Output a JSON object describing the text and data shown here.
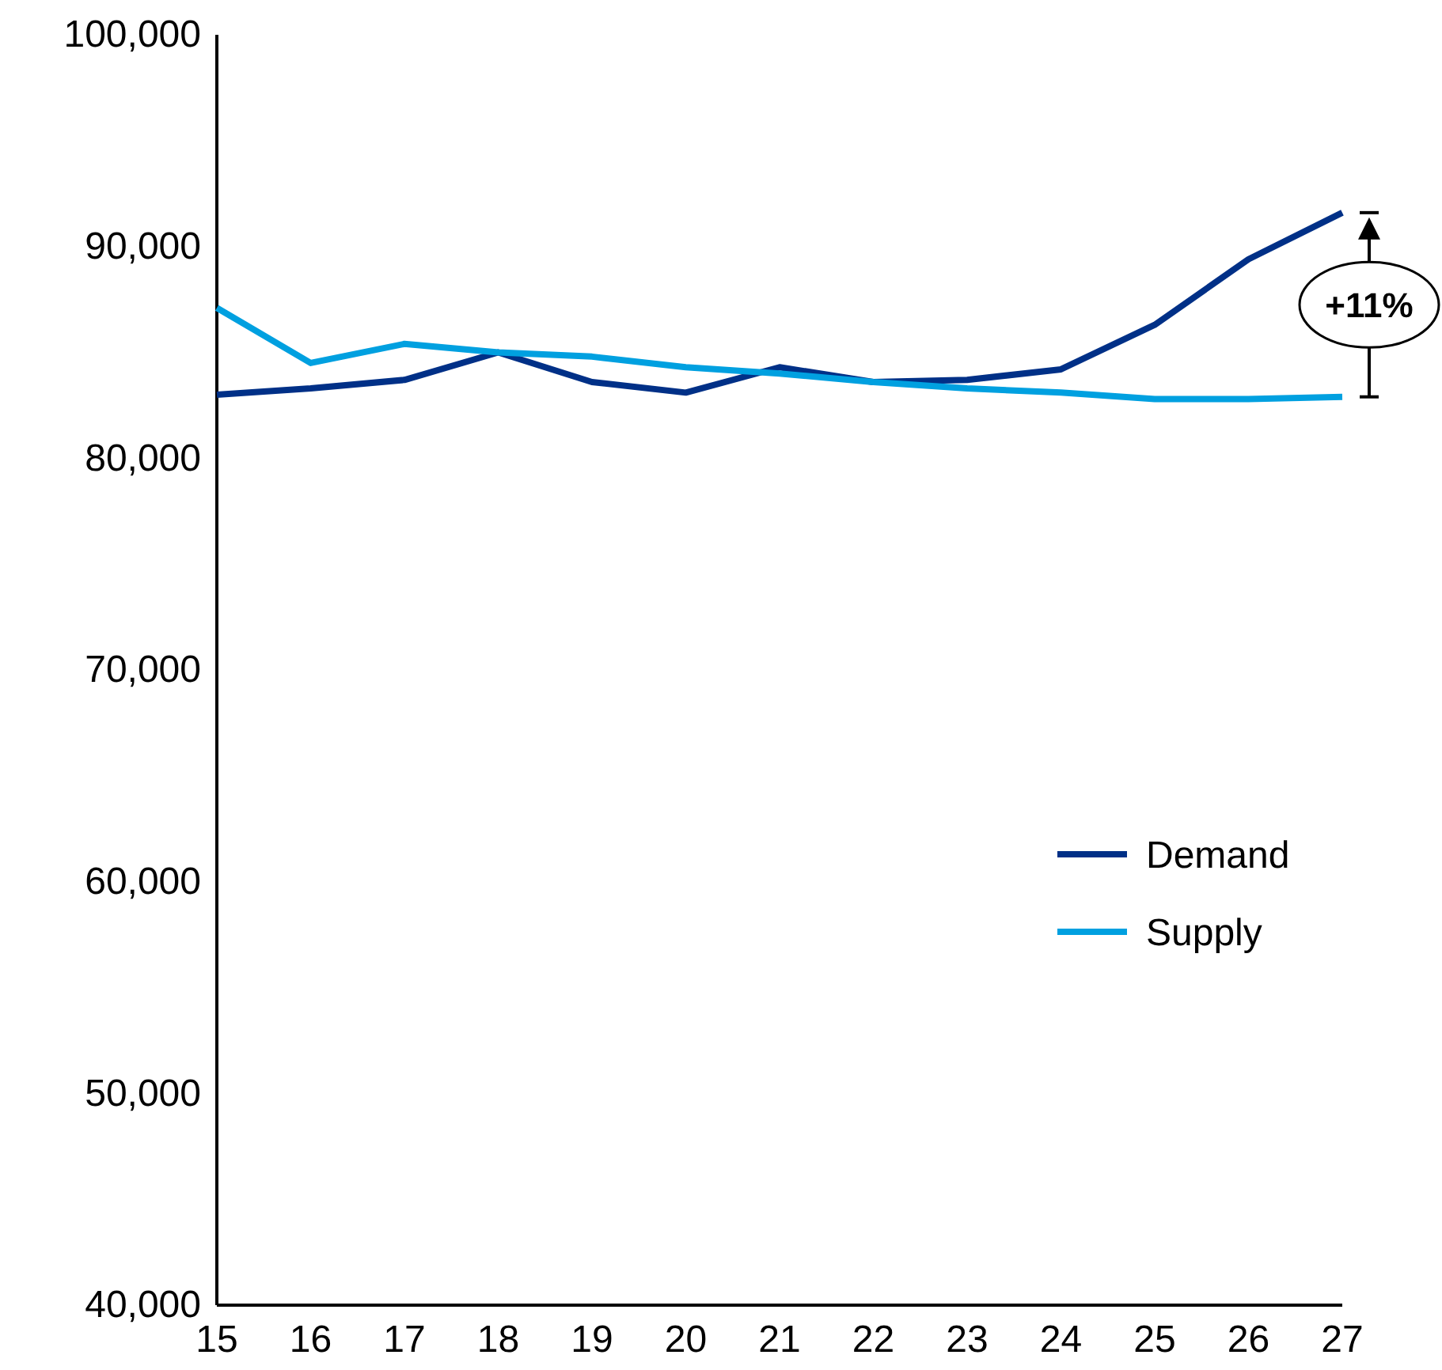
{
  "chart_data": {
    "type": "line",
    "x": [
      15,
      16,
      17,
      18,
      19,
      20,
      21,
      22,
      23,
      24,
      25,
      26,
      27
    ],
    "series": [
      {
        "name": "Demand",
        "color": "#003087",
        "values": [
          83000,
          83300,
          83700,
          85000,
          83600,
          83100,
          84300,
          83600,
          83700,
          84200,
          86300,
          89400,
          91600
        ]
      },
      {
        "name": "Supply",
        "color": "#00a0e0",
        "values": [
          87100,
          84500,
          85400,
          85000,
          84800,
          84300,
          84000,
          83600,
          83300,
          83100,
          82800,
          82800,
          82900
        ]
      }
    ],
    "xlim": [
      15,
      27
    ],
    "xticks": [
      15,
      16,
      17,
      18,
      19,
      20,
      21,
      22,
      23,
      24,
      25,
      26,
      27
    ],
    "ylim": [
      40000,
      100000
    ],
    "yticks": [
      {
        "value": 40000,
        "label": "40,000"
      },
      {
        "value": 50000,
        "label": "50,000"
      },
      {
        "value": 60000,
        "label": "60,000"
      },
      {
        "value": 70000,
        "label": "70,000"
      },
      {
        "value": 80000,
        "label": "80,000"
      },
      {
        "value": 90000,
        "label": "90,000"
      },
      {
        "value": 100000,
        "label": "100,000"
      }
    ],
    "legend": "right",
    "grid": false,
    "marker": "none",
    "line_style": "solid",
    "annotations": [
      {
        "text": "+11%",
        "x": 27,
        "y": 91600
      }
    ]
  }
}
